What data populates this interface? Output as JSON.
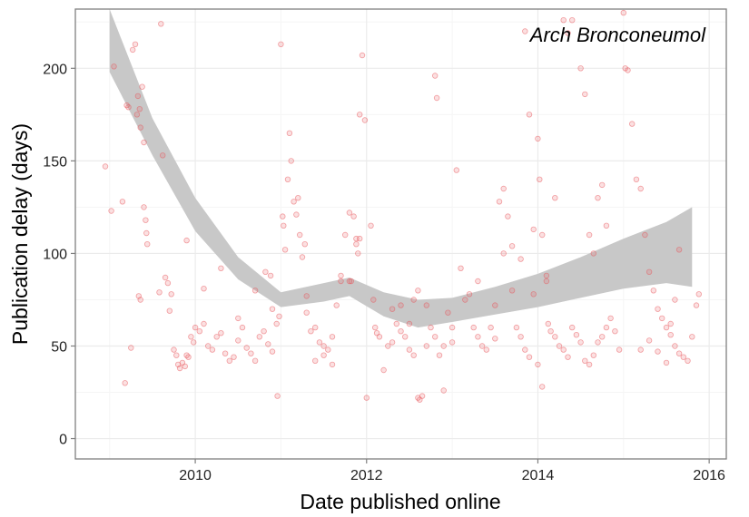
{
  "chart_data": {
    "type": "scatter",
    "title": "",
    "annotation": "Arch Bronconeumol",
    "xlabel": "Date published online",
    "ylabel": "Publication delay (days)",
    "xlim": [
      2008.6,
      2016.2
    ],
    "ylim": [
      -11,
      232
    ],
    "xticks": [
      2010,
      2012,
      2014,
      2016
    ],
    "yticks": [
      0,
      50,
      100,
      150,
      200
    ],
    "grid": true,
    "legend": "none",
    "colors": {
      "points": "#e8555b",
      "ribbon": "#c8c8c8",
      "grid_major": "#ebebeb",
      "grid_minor": "#f5f5f5",
      "border": "#7f7f7f"
    },
    "smooth": {
      "x": [
        2009.0,
        2009.5,
        2010.0,
        2010.5,
        2011.0,
        2011.5,
        2011.8,
        2012.2,
        2012.6,
        2013.0,
        2013.5,
        2014.0,
        2014.5,
        2015.0,
        2015.5,
        2015.8
      ],
      "lower": [
        198,
        153,
        112,
        86,
        71,
        74,
        77,
        66,
        60,
        63,
        67,
        71,
        76,
        81,
        84,
        82
      ],
      "upper": [
        232,
        173,
        130,
        98,
        79,
        84,
        87,
        79,
        75,
        76,
        82,
        89,
        98,
        108,
        117,
        125
      ]
    },
    "points": [
      [
        2008.95,
        147
      ],
      [
        2009.02,
        123
      ],
      [
        2009.05,
        201
      ],
      [
        2009.15,
        128
      ],
      [
        2009.18,
        30
      ],
      [
        2009.2,
        180
      ],
      [
        2009.22,
        179
      ],
      [
        2009.25,
        49
      ],
      [
        2009.27,
        210
      ],
      [
        2009.3,
        213
      ],
      [
        2009.32,
        175
      ],
      [
        2009.33,
        185
      ],
      [
        2009.35,
        178
      ],
      [
        2009.38,
        190
      ],
      [
        2009.4,
        125
      ],
      [
        2009.42,
        118
      ],
      [
        2009.43,
        111
      ],
      [
        2009.44,
        105
      ],
      [
        2009.36,
        168
      ],
      [
        2009.4,
        160
      ],
      [
        2009.34,
        77
      ],
      [
        2009.36,
        75
      ],
      [
        2009.6,
        224
      ],
      [
        2009.62,
        153
      ],
      [
        2009.65,
        87
      ],
      [
        2009.68,
        84
      ],
      [
        2009.7,
        69
      ],
      [
        2009.58,
        79
      ],
      [
        2009.72,
        78
      ],
      [
        2009.75,
        48
      ],
      [
        2009.78,
        45
      ],
      [
        2009.8,
        40
      ],
      [
        2009.82,
        38
      ],
      [
        2009.85,
        41
      ],
      [
        2009.88,
        39
      ],
      [
        2009.9,
        45
      ],
      [
        2009.92,
        44
      ],
      [
        2009.95,
        55
      ],
      [
        2009.98,
        52
      ],
      [
        2010.0,
        60
      ],
      [
        2010.05,
        58
      ],
      [
        2010.1,
        62
      ],
      [
        2010.15,
        50
      ],
      [
        2010.2,
        48
      ],
      [
        2010.25,
        55
      ],
      [
        2010.3,
        57
      ],
      [
        2010.35,
        46
      ],
      [
        2010.4,
        42
      ],
      [
        2010.45,
        44
      ],
      [
        2010.5,
        53
      ],
      [
        2010.55,
        60
      ],
      [
        2010.6,
        49
      ],
      [
        2010.65,
        46
      ],
      [
        2010.7,
        42
      ],
      [
        2010.75,
        55
      ],
      [
        2010.8,
        58
      ],
      [
        2010.85,
        51
      ],
      [
        2010.9,
        47
      ],
      [
        2010.95,
        62
      ],
      [
        2009.9,
        107
      ],
      [
        2010.1,
        81
      ],
      [
        2010.3,
        92
      ],
      [
        2010.5,
        65
      ],
      [
        2010.7,
        80
      ],
      [
        2010.82,
        90
      ],
      [
        2010.88,
        88
      ],
      [
        2010.9,
        70
      ],
      [
        2010.96,
        23
      ],
      [
        2010.98,
        66
      ],
      [
        2011.0,
        213
      ],
      [
        2011.02,
        120
      ],
      [
        2011.03,
        115
      ],
      [
        2011.05,
        102
      ],
      [
        2011.08,
        140
      ],
      [
        2011.1,
        165
      ],
      [
        2011.12,
        150
      ],
      [
        2011.15,
        128
      ],
      [
        2011.18,
        121
      ],
      [
        2011.2,
        130
      ],
      [
        2011.22,
        110
      ],
      [
        2011.25,
        98
      ],
      [
        2011.28,
        105
      ],
      [
        2011.3,
        77
      ],
      [
        2011.35,
        58
      ],
      [
        2011.4,
        60
      ],
      [
        2011.45,
        52
      ],
      [
        2011.5,
        45
      ],
      [
        2011.55,
        48
      ],
      [
        2011.6,
        55
      ],
      [
        2011.65,
        72
      ],
      [
        2011.7,
        88
      ],
      [
        2011.75,
        110
      ],
      [
        2011.8,
        122
      ],
      [
        2011.85,
        120
      ],
      [
        2011.88,
        105
      ],
      [
        2011.9,
        100
      ],
      [
        2011.92,
        175
      ],
      [
        2011.95,
        207
      ],
      [
        2011.98,
        172
      ],
      [
        2011.6,
        40
      ],
      [
        2011.7,
        85
      ],
      [
        2011.8,
        85
      ],
      [
        2011.82,
        85
      ],
      [
        2011.88,
        108
      ],
      [
        2011.92,
        108
      ],
      [
        2011.4,
        42
      ],
      [
        2011.5,
        50
      ],
      [
        2011.3,
        68
      ],
      [
        2012.0,
        22
      ],
      [
        2012.05,
        115
      ],
      [
        2012.08,
        75
      ],
      [
        2012.1,
        60
      ],
      [
        2012.12,
        57
      ],
      [
        2012.15,
        55
      ],
      [
        2012.2,
        37
      ],
      [
        2012.25,
        50
      ],
      [
        2012.3,
        52
      ],
      [
        2012.35,
        62
      ],
      [
        2012.4,
        58
      ],
      [
        2012.45,
        55
      ],
      [
        2012.5,
        48
      ],
      [
        2012.55,
        45
      ],
      [
        2012.6,
        22
      ],
      [
        2012.62,
        21
      ],
      [
        2012.65,
        23
      ],
      [
        2012.7,
        50
      ],
      [
        2012.75,
        60
      ],
      [
        2012.8,
        55
      ],
      [
        2012.85,
        45
      ],
      [
        2012.9,
        50
      ],
      [
        2012.95,
        68
      ],
      [
        2013.0,
        52
      ],
      [
        2012.8,
        196
      ],
      [
        2012.82,
        184
      ],
      [
        2012.5,
        62
      ],
      [
        2012.3,
        70
      ],
      [
        2012.4,
        72
      ],
      [
        2012.55,
        75
      ],
      [
        2012.6,
        80
      ],
      [
        2012.7,
        72
      ],
      [
        2012.9,
        26
      ],
      [
        2013.0,
        60
      ],
      [
        2013.05,
        145
      ],
      [
        2013.1,
        92
      ],
      [
        2013.15,
        75
      ],
      [
        2013.2,
        78
      ],
      [
        2013.25,
        60
      ],
      [
        2013.3,
        55
      ],
      [
        2013.35,
        50
      ],
      [
        2013.4,
        48
      ],
      [
        2013.45,
        60
      ],
      [
        2013.5,
        54
      ],
      [
        2013.55,
        128
      ],
      [
        2013.6,
        135
      ],
      [
        2013.65,
        120
      ],
      [
        2013.7,
        80
      ],
      [
        2013.75,
        60
      ],
      [
        2013.8,
        55
      ],
      [
        2013.85,
        48
      ],
      [
        2013.9,
        44
      ],
      [
        2013.95,
        78
      ],
      [
        2013.3,
        85
      ],
      [
        2013.5,
        72
      ],
      [
        2013.6,
        100
      ],
      [
        2013.7,
        104
      ],
      [
        2013.8,
        97
      ],
      [
        2013.85,
        220
      ],
      [
        2013.9,
        175
      ],
      [
        2013.95,
        113
      ],
      [
        2014.0,
        162
      ],
      [
        2014.02,
        140
      ],
      [
        2014.05,
        110
      ],
      [
        2014.1,
        85
      ],
      [
        2014.12,
        62
      ],
      [
        2014.15,
        58
      ],
      [
        2014.2,
        55
      ],
      [
        2014.25,
        50
      ],
      [
        2014.3,
        48
      ],
      [
        2014.35,
        44
      ],
      [
        2014.4,
        60
      ],
      [
        2014.45,
        56
      ],
      [
        2014.5,
        52
      ],
      [
        2014.55,
        42
      ],
      [
        2014.6,
        40
      ],
      [
        2014.65,
        45
      ],
      [
        2014.7,
        52
      ],
      [
        2014.75,
        55
      ],
      [
        2014.8,
        60
      ],
      [
        2014.85,
        65
      ],
      [
        2014.9,
        58
      ],
      [
        2014.95,
        48
      ],
      [
        2014.0,
        40
      ],
      [
        2014.05,
        28
      ],
      [
        2014.1,
        88
      ],
      [
        2014.2,
        130
      ],
      [
        2014.3,
        226
      ],
      [
        2014.35,
        219
      ],
      [
        2014.4,
        226
      ],
      [
        2014.5,
        200
      ],
      [
        2014.55,
        186
      ],
      [
        2014.6,
        110
      ],
      [
        2014.65,
        100
      ],
      [
        2014.7,
        130
      ],
      [
        2014.75,
        137
      ],
      [
        2014.8,
        115
      ],
      [
        2015.0,
        230
      ],
      [
        2015.02,
        200
      ],
      [
        2015.05,
        199
      ],
      [
        2015.1,
        170
      ],
      [
        2015.15,
        140
      ],
      [
        2015.2,
        135
      ],
      [
        2015.25,
        110
      ],
      [
        2015.3,
        90
      ],
      [
        2015.35,
        80
      ],
      [
        2015.4,
        70
      ],
      [
        2015.45,
        65
      ],
      [
        2015.5,
        60
      ],
      [
        2015.55,
        56
      ],
      [
        2015.6,
        50
      ],
      [
        2015.65,
        46
      ],
      [
        2015.7,
        44
      ],
      [
        2015.75,
        42
      ],
      [
        2015.8,
        55
      ],
      [
        2015.85,
        72
      ],
      [
        2015.88,
        78
      ],
      [
        2015.2,
        48
      ],
      [
        2015.3,
        53
      ],
      [
        2015.4,
        47
      ],
      [
        2015.5,
        41
      ],
      [
        2015.55,
        62
      ],
      [
        2015.6,
        75
      ],
      [
        2015.65,
        102
      ]
    ]
  }
}
